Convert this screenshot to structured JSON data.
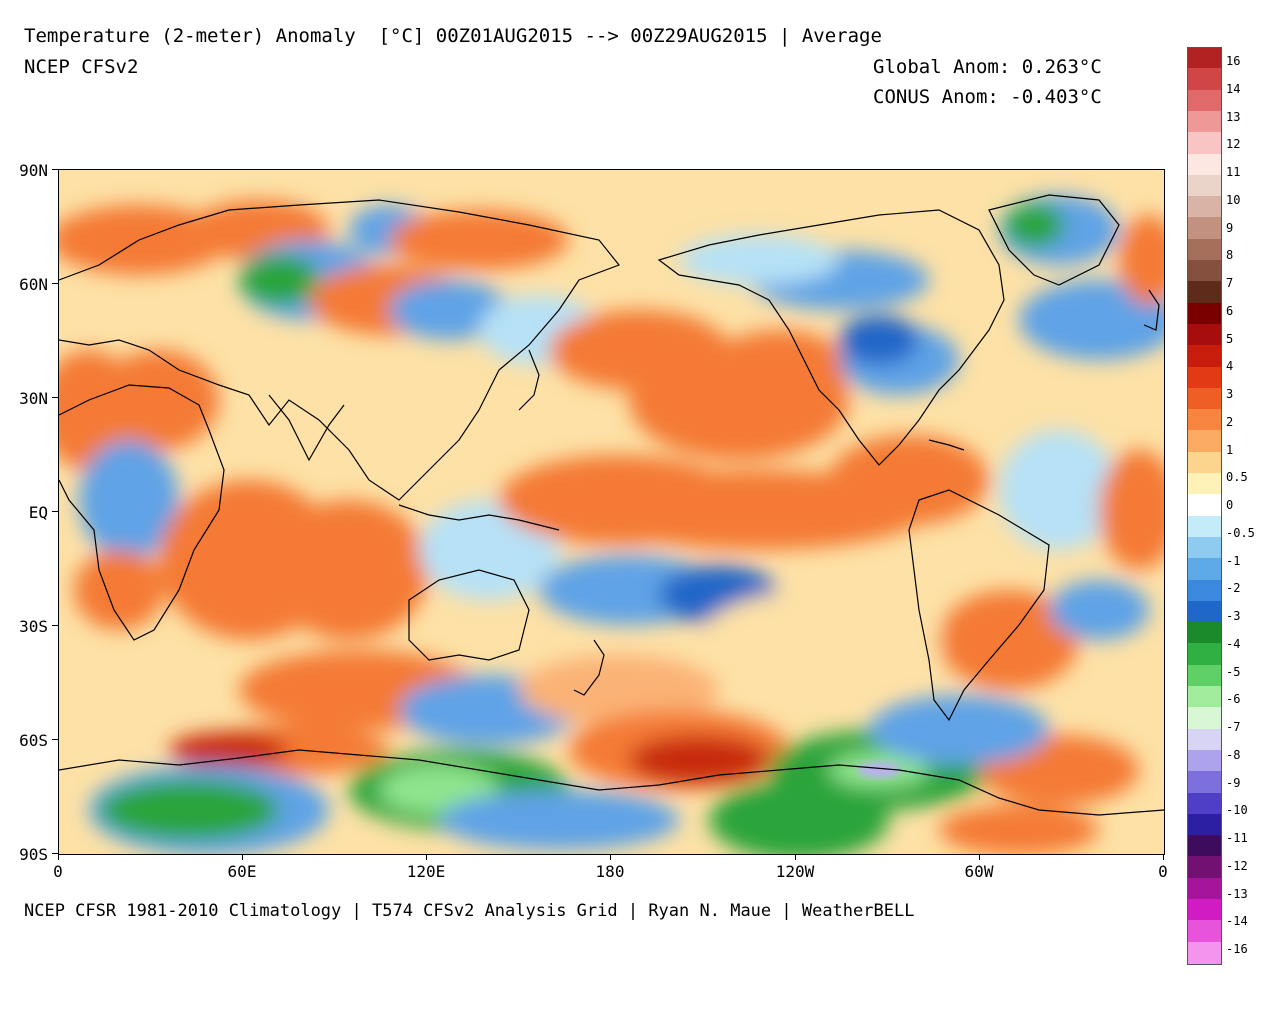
{
  "header": {
    "title": "Temperature (2-meter) Anomaly  [°C] 00Z01AUG2015 --> 00Z29AUG2015 | Average",
    "subtitle": "NCEP CFSv2",
    "global_anom": "Global Anom: 0.263°C",
    "conus_anom": "CONUS Anom: -0.403°C"
  },
  "footer": "NCEP CFSR 1981-2010 Climatology | T574 CFSv2 Analysis Grid | Ryan N. Maue | WeatherBELL",
  "map": {
    "y_ticks": [
      "90N",
      "60N",
      "30N",
      "EQ",
      "30S",
      "60S",
      "90S"
    ],
    "x_ticks": [
      "0",
      "60E",
      "120E",
      "180",
      "120W",
      "60W",
      "0"
    ]
  },
  "colorbar": {
    "labels": [
      "16",
      "14",
      "13",
      "12",
      "11",
      "10",
      "9",
      "8",
      "7",
      "6",
      "5",
      "4",
      "3",
      "2",
      "1",
      "0.5",
      "0",
      "-0.5",
      "-1",
      "-2",
      "-3",
      "-4",
      "-5",
      "-6",
      "-7",
      "-8",
      "-9",
      "-10",
      "-11",
      "-12",
      "-13",
      "-14",
      "-16"
    ],
    "colors": [
      "#b22222",
      "#c8382f",
      "#d9534f",
      "#e8797a",
      "#f4a6a6",
      "#fbd4d4",
      "#fdeeea",
      "#eed9d0",
      "#d9b0a3",
      "#c4907f",
      "#a8705e",
      "#8c4f3e",
      "#6e3524",
      "#5a1c10",
      "#7a0000",
      "#9b0b0b",
      "#b71c0a",
      "#d0300f",
      "#e8491a",
      "#f26a2f",
      "#f88a48",
      "#fbae6a",
      "#fdd08e",
      "#fff0b6",
      "#ffffff",
      "#fefefe",
      "#c6ecf9",
      "#9dd6f3",
      "#73baee",
      "#4e9be6",
      "#2f7fdc",
      "#1e63c8",
      "#1b8a2a",
      "#2aa43b",
      "#3cc44d",
      "#6ed873",
      "#9be89a",
      "#c9f3c6",
      "#e8fae6",
      "#dcd8f5",
      "#b9b1ee",
      "#958ae3",
      "#6d60d5",
      "#4b3bc4",
      "#2e21a8",
      "#3a0e5a",
      "#6a0a6a",
      "#9a0f8f",
      "#c816b8",
      "#e830d8",
      "#f05ce6",
      "#f48cee"
    ],
    "legend_colors": [
      "#b22222",
      "#d04545",
      "#e06a6a",
      "#ee9898",
      "#f8c4c4",
      "#fde7e3",
      "#ead3c9",
      "#d8b3a6",
      "#c2917f",
      "#a66f5c",
      "#86503f",
      "#5e2a1a",
      "#7a0000",
      "#a60d0d",
      "#c81d0c",
      "#e23a14",
      "#ef5e25",
      "#f7853f",
      "#fbaa62",
      "#fdd48e",
      "#fff2b8",
      "#ffffff",
      "#c4ebf8",
      "#8fcaf0",
      "#5ea9e8",
      "#3a89df",
      "#1f67c9",
      "#1b8a2a",
      "#30b042",
      "#5fd066",
      "#a0eb9c",
      "#d8f7d4",
      "#d8d4f4",
      "#aca3ec",
      "#7d6fdc",
      "#4f3fc6",
      "#2d1fa3",
      "#3e0c5c",
      "#731173",
      "#a5149a",
      "#d01cc2",
      "#e853dc",
      "#f394ef"
    ],
    "palette_anom": {
      "strong_warm": "#c82a10",
      "warm": "#f47a36",
      "mild_warm": "#fbb276",
      "slight_warm": "#fde1a6",
      "neutral": "#ffffff",
      "slight_cool": "#b6e1f6",
      "cool": "#5ea3e6",
      "cold": "#2266c8",
      "very_cold": "#2aa43b",
      "extreme_cold": "#8fe58d",
      "ice_cold": "#b9b1ee"
    }
  }
}
